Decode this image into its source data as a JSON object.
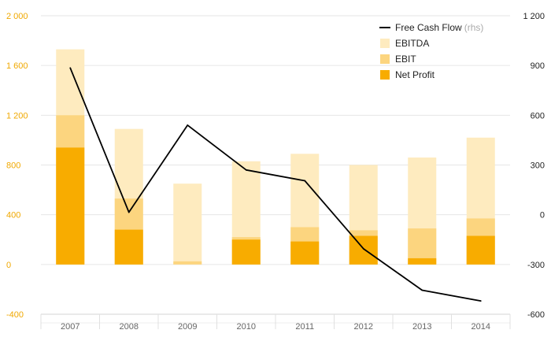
{
  "colors": {
    "net_profit": "#F8AC00",
    "ebit": "#FCD57F",
    "ebitda": "#FEEBBF",
    "fcf": "#000000",
    "left_tick": "#F0A800",
    "grid": "#E6E6E6"
  },
  "chart_data": {
    "type": "bar",
    "categories": [
      "2007",
      "2008",
      "2009",
      "2010",
      "2011",
      "2012",
      "2013",
      "2014"
    ],
    "series": [
      {
        "name": "Net Profit",
        "values": [
          940,
          280,
          0,
          200,
          185,
          230,
          50,
          230
        ]
      },
      {
        "name": "EBIT",
        "values": [
          1200,
          530,
          25,
          220,
          300,
          275,
          290,
          370
        ]
      },
      {
        "name": "EBITDA",
        "values": [
          1730,
          1090,
          650,
          830,
          890,
          800,
          860,
          1020
        ]
      },
      {
        "name": "Free Cash Flow",
        "axis": "right",
        "type": "line",
        "values": [
          885,
          15,
          540,
          270,
          205,
          -205,
          -455,
          -520
        ]
      }
    ],
    "y_left": {
      "range": [
        -400,
        2000
      ],
      "ticks": [
        "-400",
        "0",
        "400",
        "800",
        "1 200",
        "1 600",
        "2 000"
      ],
      "tick_values": [
        -400,
        0,
        400,
        800,
        1200,
        1600,
        2000
      ]
    },
    "y_right": {
      "range": [
        -600,
        1200
      ],
      "ticks": [
        "-600",
        "-300",
        "0",
        "300",
        "600",
        "900",
        "1 200"
      ],
      "tick_values": [
        -600,
        -300,
        0,
        300,
        600,
        900,
        1200
      ]
    },
    "legend": [
      {
        "label": "Free Cash Flow",
        "note": "(rhs)",
        "kind": "line",
        "color_key": "fcf"
      },
      {
        "label": "EBITDA",
        "note": "",
        "kind": "box",
        "color_key": "ebitda"
      },
      {
        "label": "EBIT",
        "note": "",
        "kind": "box",
        "color_key": "ebit"
      },
      {
        "label": "Net Profit",
        "note": "",
        "kind": "box",
        "color_key": "net_profit"
      }
    ],
    "legend_position": "top-right",
    "grid": true
  }
}
